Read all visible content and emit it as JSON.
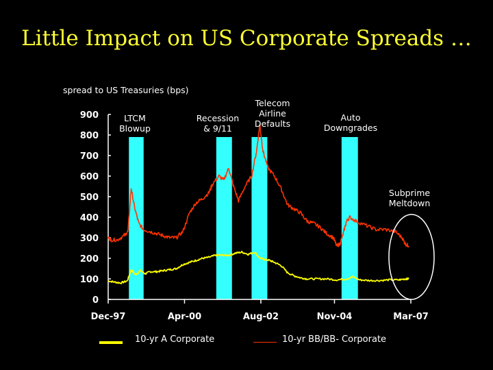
{
  "title": "Little Impact on US Corporate Spreads …",
  "chart_data": {
    "type": "line",
    "title": "Little Impact on US Corporate Spreads …",
    "ylabel": "spread to US Treasuries (bps)",
    "xlabel": "",
    "ylim": [
      0,
      900
    ],
    "yticks": [
      0,
      100,
      200,
      300,
      400,
      500,
      600,
      700,
      800,
      900
    ],
    "xlim": [
      1997.917,
      2007.167
    ],
    "xticks": [
      {
        "label": "Dec-97",
        "t": 1997.917
      },
      {
        "label": "Apr-00",
        "t": 2000.25
      },
      {
        "label": "Aug-02",
        "t": 2002.583
      },
      {
        "label": "Nov-04",
        "t": 2004.833
      },
      {
        "label": "Mar-07",
        "t": 2007.167
      }
    ],
    "shaded_periods": [
      {
        "name": "LTCM Blowup",
        "start": 1998.55,
        "end": 1999.0
      },
      {
        "name": "Recession & 9/11",
        "start": 2001.22,
        "end": 2001.7
      },
      {
        "name": "Telecom Airline Defaults",
        "start": 2002.3,
        "end": 2002.78
      },
      {
        "name": "Auto Downgrades",
        "start": 2005.05,
        "end": 2005.55
      }
    ],
    "annotations": [
      {
        "lines": [
          "LTCM",
          "Blowup"
        ]
      },
      {
        "lines": [
          "Recession",
          "& 9/11"
        ]
      },
      {
        "lines": [
          "Telecom",
          "Airline",
          "Defaults"
        ]
      },
      {
        "lines": [
          "Auto",
          "Downgrades"
        ]
      },
      {
        "lines": [
          "Subprime",
          "Meltdown"
        ]
      }
    ],
    "series": [
      {
        "name": "10-yr A Corporate",
        "color": "#ffff00",
        "x": [
          1997.92,
          1998.1,
          1998.3,
          1998.5,
          1998.62,
          1998.75,
          1998.9,
          1999.05,
          1999.2,
          1999.4,
          1999.6,
          1999.8,
          2000.0,
          2000.2,
          2000.4,
          2000.6,
          2000.8,
          2001.0,
          2001.2,
          2001.4,
          2001.6,
          2001.8,
          2002.0,
          2002.2,
          2002.4,
          2002.55,
          2002.7,
          2002.85,
          2003.0,
          2003.2,
          2003.4,
          2003.6,
          2003.8,
          2004.0,
          2004.3,
          2004.6,
          2004.9,
          2005.2,
          2005.4,
          2005.6,
          2005.9,
          2006.2,
          2006.5,
          2006.8,
          2007.0,
          2007.1
        ],
        "values": [
          90,
          85,
          80,
          90,
          145,
          120,
          140,
          125,
          135,
          135,
          140,
          145,
          150,
          170,
          180,
          190,
          200,
          205,
          215,
          215,
          215,
          225,
          230,
          220,
          230,
          200,
          195,
          190,
          180,
          165,
          130,
          115,
          105,
          100,
          100,
          100,
          95,
          100,
          110,
          95,
          92,
          92,
          95,
          95,
          100,
          100
        ]
      },
      {
        "name": "10-yr BB/BB- Corporate",
        "color": "#ff3300",
        "x": [
          1997.92,
          1998.0,
          1998.2,
          1998.4,
          1998.52,
          1998.62,
          1998.72,
          1998.85,
          1999.0,
          1999.2,
          1999.4,
          1999.6,
          1999.8,
          2000.0,
          2000.2,
          2000.4,
          2000.6,
          2000.8,
          2001.0,
          2001.1,
          2001.3,
          2001.45,
          2001.6,
          2001.75,
          2001.9,
          2002.1,
          2002.3,
          2002.45,
          2002.55,
          2002.65,
          2002.8,
          2003.0,
          2003.2,
          2003.4,
          2003.6,
          2003.8,
          2004.0,
          2004.2,
          2004.4,
          2004.6,
          2004.8,
          2004.9,
          2005.0,
          2005.1,
          2005.2,
          2005.3,
          2005.5,
          2005.8,
          2006.1,
          2006.4,
          2006.7,
          2006.9,
          2007.0,
          2007.1
        ],
        "values": [
          300,
          290,
          290,
          310,
          330,
          540,
          450,
          370,
          340,
          330,
          320,
          310,
          300,
          300,
          330,
          420,
          470,
          490,
          520,
          560,
          600,
          580,
          640,
          550,
          480,
          550,
          600,
          720,
          850,
          720,
          640,
          600,
          540,
          460,
          440,
          420,
          380,
          370,
          350,
          320,
          300,
          260,
          270,
          320,
          380,
          400,
          380,
          360,
          340,
          340,
          330,
          300,
          270,
          260
        ]
      }
    ],
    "legend": [
      "10-yr A Corporate",
      "10-yr BB/BB- Corporate"
    ]
  }
}
